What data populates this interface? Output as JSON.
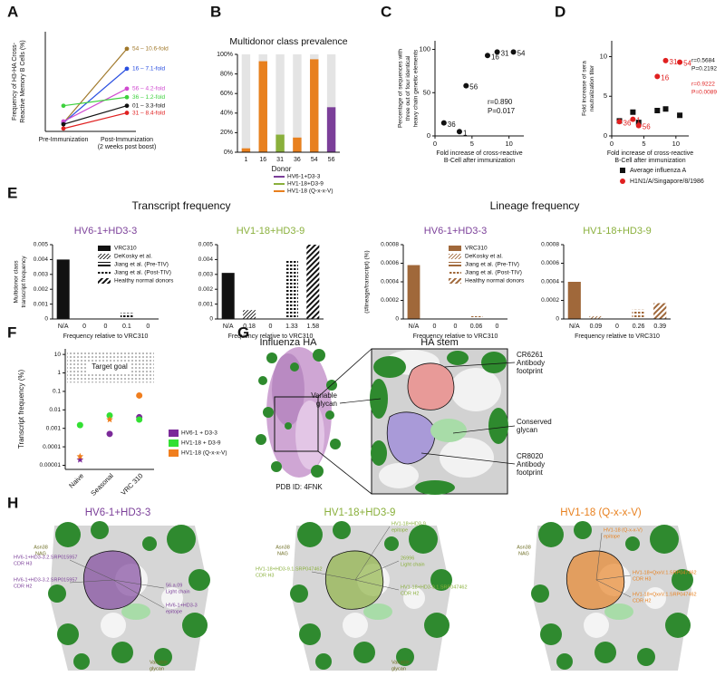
{
  "figure": {
    "panel_labels": [
      "A",
      "B",
      "C",
      "D",
      "E",
      "F",
      "G",
      "H"
    ],
    "e_headings": [
      "Transcript frequency",
      "Lineage frequency"
    ]
  },
  "chart_data": [
    {
      "type": "line",
      "ylabel": [
        "Frequency of H3-HA Cross-",
        "Reactive Memory B Cells (%)"
      ],
      "categories": [
        "Pre-Immunization",
        "Post-Immunization"
      ],
      "x_note": "(2 weeks post boost)",
      "ylim": [
        0,
        0.35
      ],
      "series": [
        {
          "name": "54 – 10.6-fold",
          "color": "#a0782a",
          "values": [
            0.03,
            0.29
          ]
        },
        {
          "name": "16 – 7.1-fold",
          "color": "#2a4fe0",
          "values": [
            0.03,
            0.22
          ]
        },
        {
          "name": "56 – 4.2-fold",
          "color": "#d04ad0",
          "values": [
            0.035,
            0.15
          ]
        },
        {
          "name": "36 – 1.2-fold",
          "color": "#3dd13d",
          "values": [
            0.09,
            0.12
          ]
        },
        {
          "name": "01 – 3.3-fold",
          "color": "#111111",
          "values": [
            0.025,
            0.09
          ]
        },
        {
          "name": "31 – 8.4-fold",
          "color": "#e02020",
          "values": [
            0.01,
            0.065
          ]
        }
      ]
    },
    {
      "type": "stacked_bar",
      "title": "Multidonor class prevalence",
      "categories": [
        "1",
        "16",
        "31",
        "36",
        "54",
        "56"
      ],
      "xlabel": "Donor",
      "ylim": [
        0,
        100
      ],
      "yticks": [
        {
          "value": 0,
          "label": "0%"
        },
        {
          "value": 20,
          "label": "20%"
        },
        {
          "value": 40,
          "label": "40%"
        },
        {
          "value": 60,
          "label": "60%"
        },
        {
          "value": 80,
          "label": "80%"
        },
        {
          "value": 100,
          "label": "100%"
        }
      ],
      "background": "#e4e4e4",
      "series": [
        {
          "name": "HV6-1+D3-3",
          "color": "#7b3f99",
          "values": [
            0,
            0,
            0,
            0,
            0,
            46
          ]
        },
        {
          "name": "HV1-18+D3-9",
          "color": "#8ab03c",
          "values": [
            0,
            0,
            18,
            0,
            0,
            0
          ]
        },
        {
          "name": "HV1-18 (Q-x-x-V)",
          "color": "#e8801e",
          "values": [
            4,
            93,
            0,
            15,
            95,
            0
          ]
        }
      ]
    },
    {
      "type": "scatter",
      "ylabel": [
        "Percentage of sequences with",
        "three out of four identical",
        "heavy chain genetic elements"
      ],
      "xlabel": [
        "Fold increase of cross-reactive",
        "B-Cell after immunization"
      ],
      "xlim": [
        0,
        12
      ],
      "xticks": [
        0,
        5,
        10
      ],
      "ylim": [
        0,
        110
      ],
      "yticks": [
        0,
        50,
        100
      ],
      "series": [
        {
          "color": "#111111",
          "marker": "circle",
          "x": [
            1.2,
            3.3,
            4.2,
            7.1,
            8.4,
            10.6
          ],
          "values": [
            15,
            5,
            58,
            93,
            97,
            97
          ],
          "labels": [
            "36",
            "1",
            "56",
            "16",
            "31",
            "54"
          ]
        }
      ],
      "annotations": [
        {
          "text": "r=0.890",
          "color": "#111111"
        },
        {
          "text": "P=0.017",
          "color": "#111111"
        }
      ]
    },
    {
      "type": "scatter",
      "ylabel": [
        "Fold increase of sera",
        "neutralization titer"
      ],
      "xlabel": [
        "Fold increase of cross-reactive",
        "B-Cell after immunization"
      ],
      "xlim": [
        0,
        12
      ],
      "xticks": [
        0,
        5,
        10
      ],
      "ylim": [
        0,
        12
      ],
      "yticks": [
        0,
        5,
        10
      ],
      "series": [
        {
          "name": "Average influenza A",
          "color": "#111111",
          "marker": "square",
          "x": [
            1.2,
            3.3,
            4.2,
            7.1,
            8.4,
            10.6
          ],
          "values": [
            1.9,
            3.0,
            1.7,
            3.2,
            3.4,
            2.6
          ]
        },
        {
          "name": "H1N1/A/Singapore/8/1986",
          "color": "#e02020",
          "marker": "circle",
          "x": [
            1.2,
            3.3,
            4.2,
            7.1,
            8.4,
            10.6
          ],
          "values": [
            1.8,
            2.1,
            1.3,
            7.5,
            9.5,
            9.3
          ],
          "labels": [
            "36",
            "1",
            "56",
            "16",
            "31",
            "54"
          ]
        }
      ],
      "annotations": [
        {
          "text": "r=0.5684",
          "color": "#111111"
        },
        {
          "text": "P=0.2192",
          "color": "#111111"
        },
        {
          "text": "r=0.9222",
          "color": "#e02020"
        },
        {
          "text": "P=0.0089",
          "color": "#e02020"
        }
      ]
    },
    {
      "type": "bar",
      "title": "HV6-1+HD3-3",
      "title_color": "#7b3f99",
      "color": "#111111",
      "ylabel": [
        "Multidonor class",
        "transcript frequency"
      ],
      "xlabel": "Frequency relative to VRC310",
      "categories": [
        "N/A",
        "0",
        "0",
        "0.1",
        "0"
      ],
      "values": [
        0.004,
        0,
        0,
        0.0004,
        0
      ],
      "ylim": [
        0,
        0.005
      ],
      "yticks": [
        0,
        0.001,
        0.002,
        0.003,
        0.004,
        0.005
      ],
      "datasets": [
        "VRC310",
        "DeKosky et al.",
        "Jiang et al. (Pre-TIV)",
        "Jiang et al. (Post-TIV)",
        "Healthy normal donors"
      ]
    },
    {
      "type": "bar",
      "title": "HV1-18+HD3-9",
      "title_color": "#8ab03c",
      "color": "#111111",
      "xlabel": "Frequency relative to VRC310",
      "categories": [
        "N/A",
        "0.18",
        "0",
        "1.33",
        "1.58"
      ],
      "values": [
        0.0031,
        0.0006,
        0,
        0.004,
        0.005
      ],
      "ylim": [
        0,
        0.005
      ],
      "yticks": [
        0,
        0.001,
        0.002,
        0.003,
        0.004,
        0.005
      ]
    },
    {
      "type": "bar",
      "title": "HV6-1+HD3-3",
      "title_color": "#7b3f99",
      "color": "#a0683a",
      "ylabel": [
        "(#lineage/transcript) (%)"
      ],
      "xlabel": "Frequency relative to VRC310",
      "categories": [
        "N/A",
        "0",
        "0",
        "0.06",
        "0"
      ],
      "values": [
        0.00058,
        0,
        0,
        3e-05,
        0
      ],
      "ylim": [
        0,
        0.0008
      ],
      "yticks": [
        0,
        0.0002,
        0.0004,
        0.0006,
        0.0008
      ],
      "datasets": [
        "VRC310",
        "DeKosky et al.",
        "Jiang et al. (Pre-TIV)",
        "Jiang et al. (Post-TIV)",
        "Healthy normal donors"
      ]
    },
    {
      "type": "bar",
      "title": "HV1-18+HD3-9",
      "title_color": "#8ab03c",
      "color": "#a0683a",
      "xlabel": "Frequency relative to VRC310",
      "categories": [
        "N/A",
        "0.09",
        "0",
        "0.26",
        "0.39"
      ],
      "values": [
        0.0004,
        3e-05,
        0,
        0.0001,
        0.00017
      ],
      "ylim": [
        0,
        0.0008
      ],
      "yticks": [
        0,
        0.0002,
        0.0004,
        0.0006,
        0.0008
      ]
    },
    {
      "type": "strip",
      "log_scale": true,
      "ylabel": "Transcript frequency (%)",
      "categories": [
        "Naive",
        "Seasonal",
        "VRC 310"
      ],
      "ylim": [
        6e-06,
        20
      ],
      "yticks": [
        1e-05,
        0.0001,
        0.001,
        0.01,
        0.1,
        1,
        10
      ],
      "annotation": "Target goal",
      "target_range": [
        0.3,
        15
      ],
      "series": [
        {
          "name": "HV6-1 + D3-3",
          "color": "#7b2a99",
          "values": [
            2e-05,
            0.0005,
            0.004
          ],
          "censored": [
            true,
            false,
            false
          ]
        },
        {
          "name": "HV1-18 + D3-9",
          "color": "#33e033",
          "values": [
            0.0015,
            0.005,
            0.003
          ],
          "censored": [
            false,
            false,
            false
          ]
        },
        {
          "name": "HV1-18 (Q-x-x-V)",
          "color": "#f07e1e",
          "values": [
            3e-05,
            0.003,
            0.06
          ],
          "censored": [
            true,
            true,
            false
          ]
        }
      ]
    }
  ],
  "structures": {
    "g": {
      "left_title": "Influenza HA",
      "right_title": "HA stem",
      "pdb": "PDB ID: 4FNK",
      "cr6261": [
        "CR6261",
        "Antibody",
        "footprint"
      ],
      "variable_glycan": [
        "Variable",
        "glycan"
      ],
      "conserved_glycan": [
        "Conserved",
        "glycan"
      ],
      "cr8020": [
        "CR8020",
        "Antibody",
        "footprint"
      ]
    },
    "h": [
      {
        "title": "HV6-1+HD3-3",
        "color": "#7b3f99",
        "asn": [
          "Asn38",
          "NAG"
        ],
        "labels": [
          [
            "HV6-1+HD3-3.2.SRP015957",
            "CDR H3"
          ],
          [
            "HV6-1+HD3-3.2.SRP015957",
            "CDR H2"
          ],
          [
            "56.a.09",
            "Light chain"
          ],
          [
            "HV6-1+HD3-3",
            "epitope"
          ]
        ],
        "glycan": [
          "Variable",
          "glycan"
        ]
      },
      {
        "title": "HV1-18+HD3-9",
        "color": "#8ab03c",
        "asn": [
          "Asn38",
          "NAG"
        ],
        "labels": [
          [
            "HV1-18+HD3-9",
            "epitope"
          ],
          [
            "HV1-18+HD3-9.1.SRP047462",
            "CDR H3"
          ],
          [
            "26996",
            "Light chain"
          ],
          [
            "HV1-18+HD3-9.1.SRP047462",
            "CDR H2"
          ]
        ],
        "glycan": [
          "Variable",
          "glycan"
        ]
      },
      {
        "title": "HV1-18 (Q-x-x-V)",
        "color": "#e8801e",
        "asn": [
          "Asn38",
          "NAG"
        ],
        "labels": [
          [
            "HV1-18 (Q-x-x-V)",
            "epitope"
          ],
          [
            "HV1-18+QxxV.1.SRP047462",
            "CDR H3"
          ],
          [
            "HV1-18+QxxV.1.SRP047462",
            "CDR H2"
          ]
        ]
      }
    ]
  }
}
